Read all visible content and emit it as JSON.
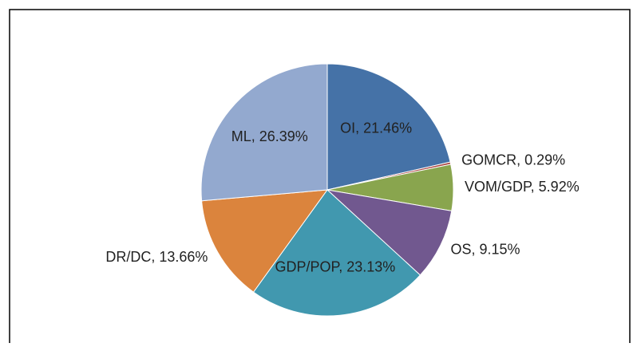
{
  "chart_data": {
    "type": "pie",
    "categories": [
      "OI",
      "GOMCR",
      "VOM/GDP",
      "OS",
      "GDP/POP",
      "DR/DC",
      "ML"
    ],
    "values": [
      21.46,
      0.29,
      5.92,
      9.15,
      23.13,
      13.66,
      26.39
    ],
    "value_labels": [
      "21.46%",
      "0.29%",
      "5.92%",
      "9.15%",
      "23.13%",
      "13.66%",
      "26.39%"
    ],
    "colors": [
      "#4572a7",
      "#aa4643",
      "#89a54e",
      "#71588f",
      "#4198af",
      "#db843d",
      "#93a9cf"
    ]
  }
}
